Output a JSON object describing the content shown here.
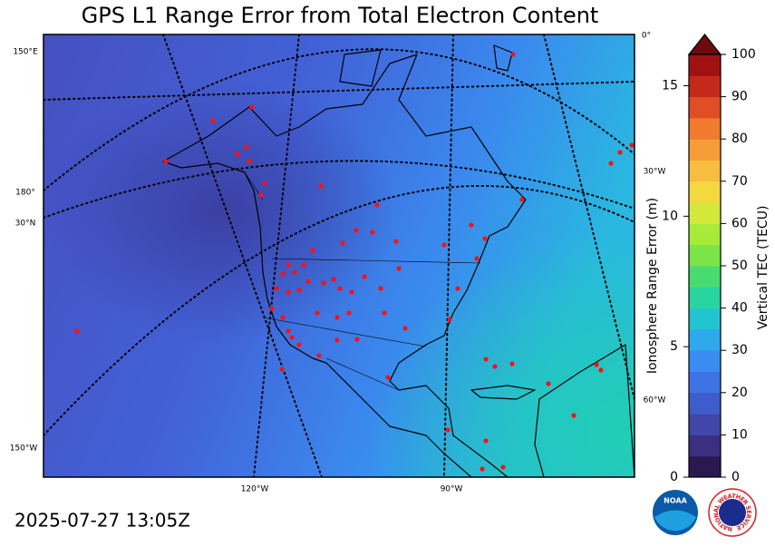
{
  "title": "GPS L1 Range Error from Total Electron Content",
  "timestamp": "2025-07-27 13:05Z",
  "map": {
    "graticule_labels": [
      "150°E",
      "180°",
      "30°N",
      "150°W",
      "0°",
      "30°W",
      "60°W",
      "120°W",
      "90°W"
    ]
  },
  "colorbar": {
    "label": "Vertical TEC (TECU)",
    "lim": [
      0,
      100
    ],
    "ticks": [
      0,
      10,
      20,
      30,
      40,
      50,
      60,
      70,
      80,
      90,
      100
    ],
    "extend_color": "#6e0a0a",
    "colors": [
      "#2b1850",
      "#3a2f80",
      "#4047a8",
      "#3f5ccc",
      "#3d73e4",
      "#3a8cf0",
      "#30a8ec",
      "#22c4d0",
      "#28d4a0",
      "#48dc70",
      "#7ae448",
      "#a8ea38",
      "#d4e83c",
      "#f4d840",
      "#f8bc40",
      "#f69c38",
      "#f07a2e",
      "#e04e26",
      "#c42a1a",
      "#a01212"
    ],
    "range_axis": {
      "label": "Ionosphere Range Error (m)",
      "lim": [
        0,
        16.2
      ],
      "ticks": [
        0,
        5,
        10,
        15
      ]
    }
  },
  "logos": {
    "noaa": "NOAA",
    "nws": "NATIONAL WEATHER SERVICE"
  }
}
